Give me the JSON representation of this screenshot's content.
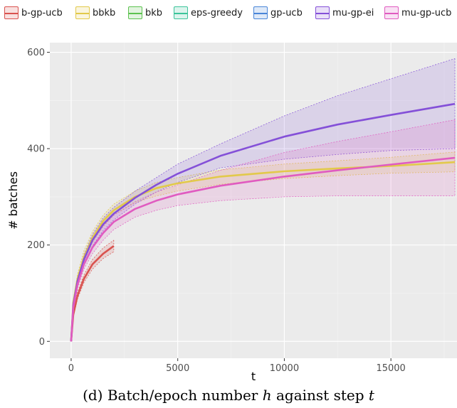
{
  "chart_data": {
    "type": "line",
    "xlabel": "t",
    "ylabel": "# batches",
    "xlim": [
      -1000,
      18100
    ],
    "ylim": [
      -35,
      620
    ],
    "x_ticks": [
      0,
      5000,
      10000,
      15000
    ],
    "x_tick_labels": [
      "0",
      "5000",
      "10000",
      "15000"
    ],
    "y_ticks": [
      0,
      200,
      400,
      600
    ],
    "y_tick_labels": [
      "0",
      "200",
      "400",
      "600"
    ],
    "grid": true,
    "legend_position": "top",
    "series": [
      {
        "name": "b-gp-ucb",
        "color": "#d9534f",
        "x": [
          0,
          100,
          300,
          600,
          1000,
          1500,
          2000
        ],
        "mean": [
          0,
          55,
          95,
          130,
          160,
          182,
          198
        ],
        "lower": [
          0,
          50,
          88,
          122,
          150,
          172,
          186
        ],
        "upper": [
          0,
          60,
          102,
          138,
          170,
          194,
          210
        ]
      },
      {
        "name": "bbkb",
        "color": "#e2c94a",
        "x": [
          0,
          100,
          300,
          600,
          1000,
          1500,
          2000,
          3000,
          4000,
          5000,
          7000,
          10000,
          12500,
          15000,
          18000
        ],
        "mean": [
          0,
          80,
          130,
          175,
          215,
          250,
          272,
          300,
          318,
          328,
          342,
          353,
          359,
          364,
          372
        ],
        "lower": [
          0,
          75,
          122,
          165,
          205,
          238,
          262,
          288,
          302,
          312,
          326,
          338,
          344,
          349,
          352
        ],
        "upper": [
          0,
          85,
          140,
          188,
          228,
          262,
          285,
          312,
          330,
          340,
          356,
          368,
          375,
          382,
          393
        ]
      },
      {
        "name": "bkb",
        "color": "#5cc24f",
        "x": [],
        "mean": []
      },
      {
        "name": "eps-greedy",
        "color": "#3cc49a",
        "x": [],
        "mean": []
      },
      {
        "name": "gp-ucb",
        "color": "#4a86d8",
        "x": [],
        "mean": []
      },
      {
        "name": "mu-gp-ei",
        "color": "#8450d8",
        "x": [
          0,
          100,
          300,
          600,
          1000,
          1500,
          2000,
          3000,
          4000,
          5000,
          7000,
          10000,
          12500,
          15000,
          18000
        ],
        "mean": [
          0,
          75,
          125,
          170,
          210,
          243,
          265,
          298,
          325,
          348,
          385,
          425,
          450,
          470,
          493
        ],
        "lower": [
          0,
          70,
          118,
          160,
          198,
          230,
          252,
          285,
          310,
          330,
          360,
          378,
          388,
          396,
          400
        ],
        "upper": [
          0,
          80,
          132,
          180,
          222,
          256,
          278,
          312,
          340,
          368,
          410,
          468,
          510,
          545,
          587
        ]
      },
      {
        "name": "mu-gp-ucb",
        "color": "#e05bc0",
        "x": [
          0,
          100,
          300,
          600,
          1000,
          1500,
          2000,
          3000,
          4000,
          5000,
          7000,
          10000,
          12500,
          15000,
          18000
        ],
        "mean": [
          0,
          70,
          118,
          160,
          195,
          225,
          248,
          275,
          292,
          305,
          323,
          342,
          355,
          367,
          381
        ],
        "lower": [
          0,
          65,
          110,
          150,
          182,
          210,
          232,
          258,
          272,
          282,
          292,
          300,
          302,
          302,
          302
        ],
        "upper": [
          0,
          75,
          126,
          170,
          208,
          240,
          262,
          290,
          310,
          325,
          355,
          392,
          415,
          435,
          460
        ]
      }
    ]
  },
  "caption": {
    "prefix": "(d) Batch/epoch number ",
    "var1": "h",
    "middle": " against step ",
    "var2": "t"
  }
}
